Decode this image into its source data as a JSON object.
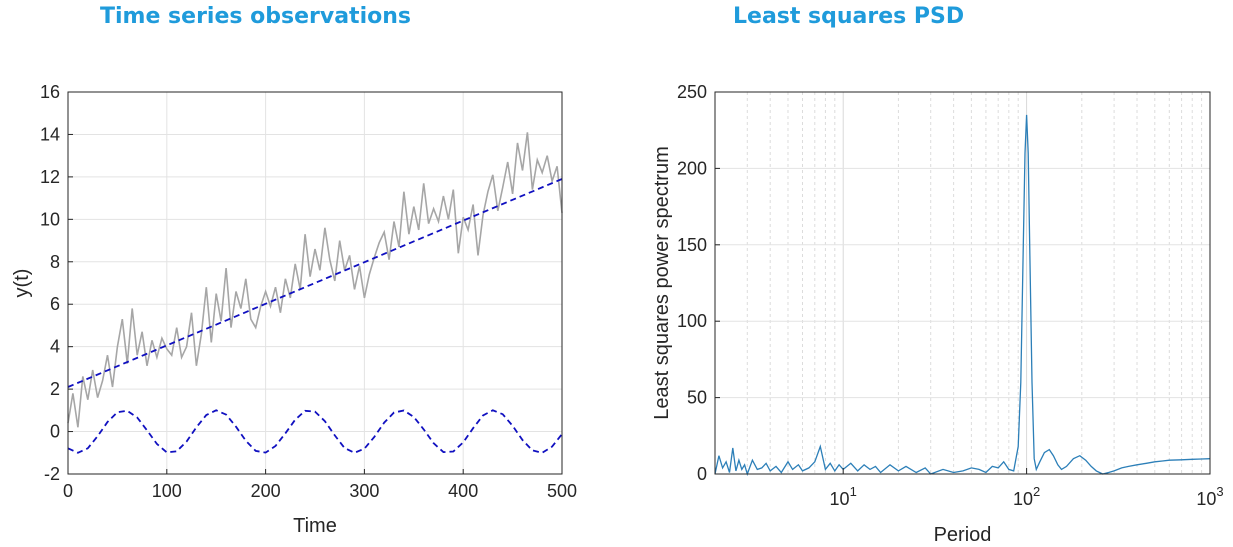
{
  "panels": {
    "left_title": "Time series observations",
    "right_title": "Least squares PSD"
  },
  "chart_data": [
    {
      "type": "line",
      "title": "Time series observations",
      "xlabel": "Time",
      "ylabel": "y(t)",
      "xlim": [
        0,
        500
      ],
      "ylim": [
        -2,
        16
      ],
      "xticks": [
        0,
        100,
        200,
        300,
        400,
        500
      ],
      "yticks": [
        -2,
        0,
        2,
        4,
        6,
        8,
        10,
        12,
        14,
        16
      ],
      "grid": true,
      "colors": {
        "observations": "#a6a6a6",
        "trend": "#1010c0",
        "periodic": "#1010c0"
      },
      "series": [
        {
          "style": "solid",
          "x": [
            0,
            5,
            10,
            15,
            20,
            25,
            30,
            35,
            40,
            45,
            50,
            55,
            60,
            65,
            70,
            75,
            80,
            85,
            90,
            95,
            100,
            105,
            110,
            115,
            120,
            125,
            130,
            135,
            140,
            145,
            150,
            155,
            160,
            165,
            170,
            175,
            180,
            185,
            190,
            195,
            200,
            205,
            210,
            215,
            220,
            225,
            230,
            235,
            240,
            245,
            250,
            255,
            260,
            265,
            270,
            275,
            280,
            285,
            290,
            295,
            300,
            305,
            310,
            315,
            320,
            325,
            330,
            335,
            340,
            345,
            350,
            355,
            360,
            365,
            370,
            375,
            380,
            385,
            390,
            395,
            400,
            405,
            410,
            415,
            420,
            425,
            430,
            435,
            440,
            445,
            450,
            455,
            460,
            465,
            470,
            475,
            480,
            485,
            490,
            495,
            500
          ],
          "values": [
            0.4,
            1.8,
            0.2,
            2.6,
            1.5,
            2.9,
            1.6,
            2.4,
            3.6,
            2.1,
            4.0,
            5.3,
            3.2,
            5.8,
            3.6,
            4.7,
            3.1,
            4.3,
            3.5,
            4.4,
            3.9,
            3.6,
            4.9,
            3.5,
            4.0,
            5.6,
            3.1,
            4.6,
            6.8,
            4.2,
            6.5,
            5.2,
            7.7,
            4.9,
            6.6,
            5.8,
            7.2,
            5.3,
            4.9,
            5.9,
            6.6,
            5.9,
            6.8,
            5.6,
            7.2,
            6.3,
            7.9,
            6.7,
            9.3,
            7.3,
            8.6,
            7.6,
            9.6,
            8.1,
            7.1,
            9.0,
            7.6,
            8.3,
            6.7,
            7.8,
            6.3,
            7.4,
            8.2,
            8.9,
            9.4,
            8.1,
            9.9,
            8.7,
            11.3,
            9.3,
            10.6,
            9.5,
            11.7,
            9.8,
            10.5,
            9.9,
            11.1,
            10.0,
            11.4,
            8.4,
            10.1,
            9.5,
            10.7,
            8.3,
            10.2,
            11.3,
            12.1,
            10.4,
            11.5,
            12.7,
            11.2,
            13.6,
            12.3,
            14.1,
            11.4,
            12.8,
            12.2,
            13.0,
            11.8,
            12.5,
            10.3
          ]
        },
        {
          "style": "dashed",
          "x": [
            0,
            500
          ],
          "values": [
            2.1,
            11.9
          ]
        },
        {
          "style": "dashed",
          "x": [
            0,
            10,
            20,
            30,
            40,
            50,
            60,
            70,
            80,
            90,
            100,
            110,
            120,
            130,
            140,
            150,
            160,
            170,
            180,
            190,
            200,
            210,
            220,
            230,
            240,
            250,
            260,
            270,
            280,
            290,
            300,
            310,
            320,
            330,
            340,
            350,
            360,
            370,
            380,
            390,
            400,
            410,
            420,
            430,
            440,
            450,
            460,
            470,
            480,
            490,
            500
          ],
          "values": [
            -0.79,
            -1.0,
            -0.79,
            -0.22,
            0.45,
            0.91,
            0.98,
            0.66,
            0.06,
            -0.58,
            -0.98,
            -0.93,
            -0.47,
            0.2,
            0.78,
            1.0,
            0.8,
            0.23,
            -0.43,
            -0.91,
            -0.99,
            -0.68,
            -0.08,
            0.56,
            0.98,
            0.94,
            0.49,
            -0.18,
            -0.78,
            -1.0,
            -0.81,
            -0.25,
            0.42,
            0.9,
            0.99,
            0.69,
            0.1,
            -0.55,
            -0.97,
            -0.94,
            -0.51,
            0.16,
            0.76,
            1.0,
            0.82,
            0.27,
            -0.4,
            -0.89,
            -1.0,
            -0.71,
            -0.12
          ]
        }
      ]
    },
    {
      "type": "line",
      "title": "Least squares PSD",
      "xlabel": "Period",
      "ylabel": "Least squares power spectrum",
      "xscale": "log",
      "xlim": [
        2,
        1000
      ],
      "ylim": [
        0,
        250
      ],
      "xticks": [
        10,
        100,
        1000
      ],
      "xtick_labels": [
        {
          "base": "10",
          "exp": "1"
        },
        {
          "base": "10",
          "exp": "2"
        },
        {
          "base": "10",
          "exp": "3"
        }
      ],
      "yticks": [
        0,
        50,
        100,
        150,
        200,
        250
      ],
      "grid": true,
      "colors": {
        "spectrum": "#2c7fb8"
      },
      "series": [
        {
          "x": [
            2,
            2.1,
            2.2,
            2.3,
            2.4,
            2.5,
            2.6,
            2.7,
            2.8,
            2.9,
            3.0,
            3.2,
            3.4,
            3.6,
            3.8,
            4.0,
            4.3,
            4.6,
            5.0,
            5.3,
            5.7,
            6.0,
            6.5,
            7.0,
            7.5,
            8.0,
            8.5,
            9.0,
            9.5,
            10,
            11,
            12,
            13,
            14,
            15,
            16,
            18,
            20,
            22,
            25,
            28,
            30,
            35,
            40,
            45,
            50,
            55,
            60,
            65,
            70,
            75,
            80,
            85,
            90,
            93,
            96,
            98,
            100,
            102,
            104,
            107,
            110,
            113,
            118,
            125,
            133,
            140,
            148,
            155,
            165,
            180,
            195,
            210,
            225,
            240,
            260,
            280,
            300,
            330,
            360,
            400,
            450,
            500,
            550,
            600,
            700,
            800,
            900,
            1000
          ],
          "values": [
            0,
            12,
            4,
            8,
            1,
            17,
            2,
            9,
            3,
            6,
            0,
            9,
            3,
            4,
            7,
            2,
            5,
            1,
            8,
            3,
            6,
            2,
            4,
            8,
            18,
            3,
            7,
            2,
            6,
            3,
            7,
            2,
            6,
            3,
            5,
            1,
            6,
            2,
            5,
            1,
            4,
            0,
            3,
            1,
            2,
            4,
            3,
            1,
            5,
            4,
            8,
            3,
            2,
            18,
            60,
            150,
            210,
            235,
            210,
            150,
            60,
            10,
            3,
            8,
            14,
            16,
            12,
            6,
            3,
            5,
            10,
            12,
            9,
            5,
            2,
            0,
            1,
            2,
            4,
            5,
            6,
            7,
            8,
            8.5,
            9,
            9.3,
            9.6,
            9.8,
            10
          ]
        }
      ]
    }
  ]
}
